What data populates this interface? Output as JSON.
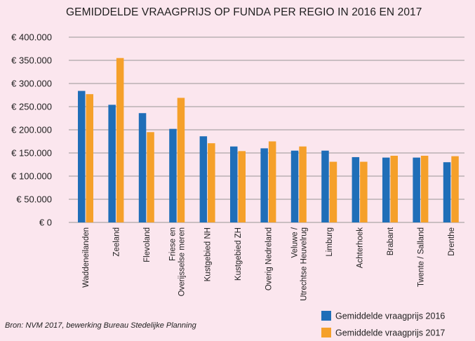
{
  "chart_data": {
    "type": "bar",
    "title": "GEMIDDELDE VRAAGPRIJS OP FUNDA PER REGIO IN 2016 EN 2017",
    "categories": [
      [
        "Waddeneilanden"
      ],
      [
        "Zeeland"
      ],
      [
        "Flevoland"
      ],
      [
        "Friese en",
        "Overijsselse meren"
      ],
      [
        "Kustgebied NH"
      ],
      [
        "Kustgebied ZH"
      ],
      [
        "Overig Nedreland"
      ],
      [
        "Veluwe /",
        "Utrechtse Heuvelrug"
      ],
      [
        "Limburg"
      ],
      [
        "Achterhoek"
      ],
      [
        "Brabant"
      ],
      [
        "Twente / Salland"
      ],
      [
        "Drenthe"
      ]
    ],
    "series": [
      {
        "name": "Gemiddelde vraagprijs 2016",
        "color": "#1f6eb8",
        "values": [
          284000,
          254000,
          236000,
          202000,
          186000,
          164000,
          160000,
          155000,
          155000,
          141000,
          140000,
          140000,
          130000
        ]
      },
      {
        "name": "Gemiddelde vraagprijs 2017",
        "color": "#f5a02a",
        "values": [
          277000,
          355000,
          195000,
          269000,
          171000,
          154000,
          175000,
          164000,
          131000,
          131000,
          144000,
          144000,
          143000
        ]
      }
    ],
    "ylim": [
      0,
      400000
    ],
    "yticks": [
      {
        "value": 0,
        "label": "€ 0"
      },
      {
        "value": 50000,
        "label": "€ 50.000"
      },
      {
        "value": 100000,
        "label": "€ 100.000"
      },
      {
        "value": 150000,
        "label": "€ 150.000"
      },
      {
        "value": 200000,
        "label": "€ 200.000"
      },
      {
        "value": 250000,
        "label": "€ 250.000"
      },
      {
        "value": 300000,
        "label": "€ 300.000"
      },
      {
        "value": 350000,
        "label": "€ 350.000"
      },
      {
        "value": 400000,
        "label": "€ 400.000"
      }
    ],
    "grid": true,
    "legend_position": "bottom-right",
    "source": "Bron: NVM 2017, bewerking Bureau Stedelijke Planning"
  }
}
